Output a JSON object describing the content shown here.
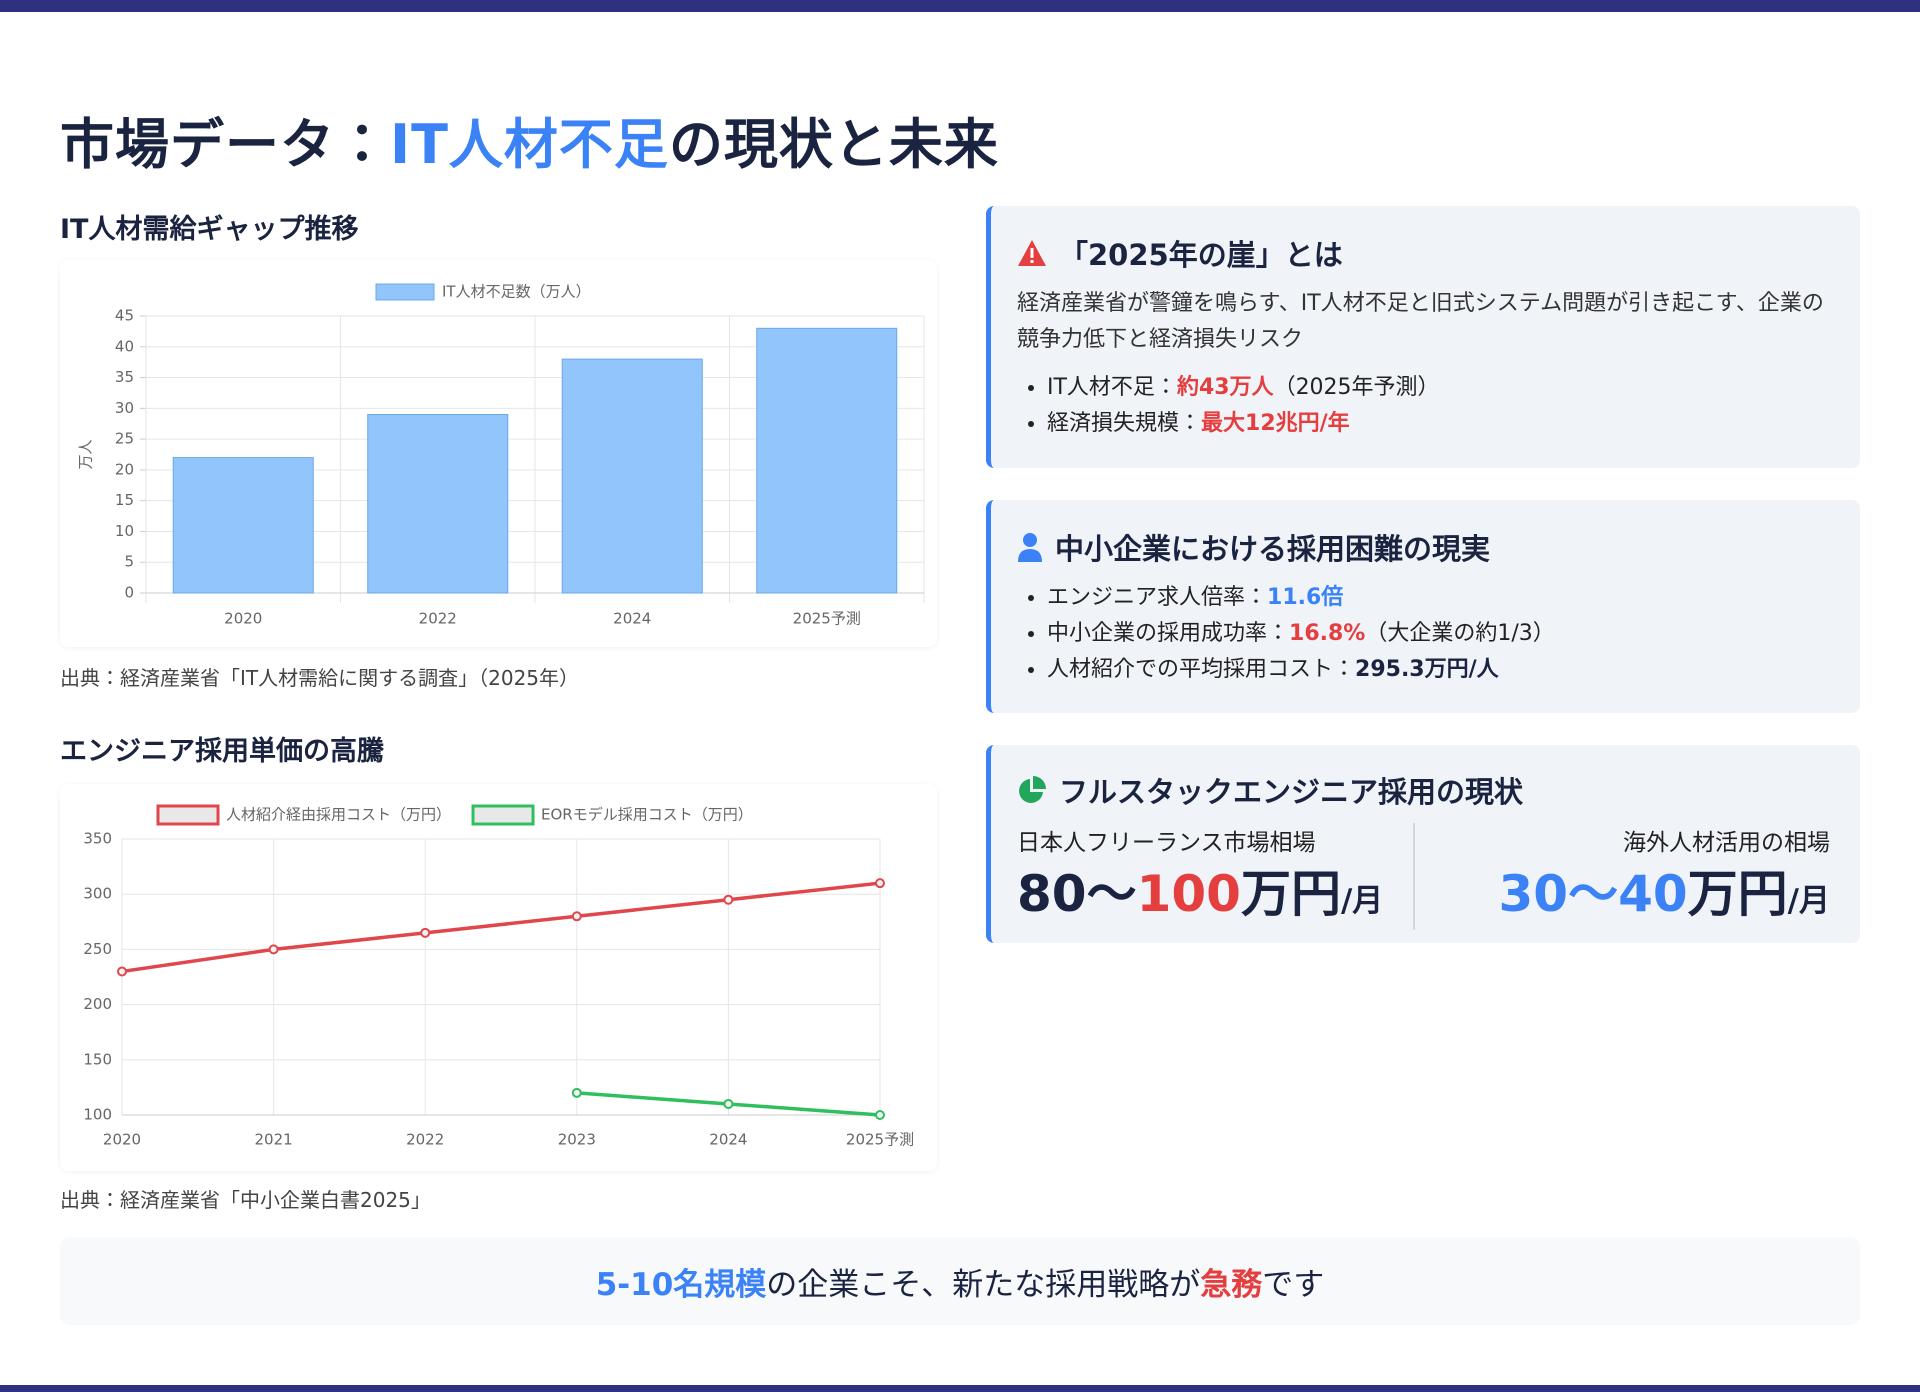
{
  "header": {
    "title": [
      {
        "text": "市場データ："
      },
      {
        "text": "IT人材不足",
        "color": "#3b82f6"
      },
      {
        "text": "の現状と未来"
      }
    ]
  },
  "chart_data": [
    {
      "type": "bar",
      "title": "IT人材需給ギャップ推移",
      "categories": [
        "2020",
        "2022",
        "2024",
        "2025予測"
      ],
      "series": [
        {
          "name": "IT人材不足数（万人）",
          "color": "#93c5fd",
          "values": [
            22,
            29,
            38,
            43
          ]
        }
      ],
      "y_label": "万人",
      "ylim": [
        0,
        45
      ],
      "yticks": [
        0,
        5,
        10,
        15,
        20,
        25,
        30,
        35,
        40,
        45
      ],
      "grid": true,
      "source": "出典：経済産業省「IT人材需給に関する調査」（2025年）"
    },
    {
      "type": "line",
      "title": "エンジニア採用単価の高騰",
      "categories": [
        "2020",
        "2021",
        "2022",
        "2023",
        "2024",
        "2025予測"
      ],
      "series": [
        {
          "name": "人材紹介経由採用コスト（万円）",
          "color": "#e0474c",
          "values": [
            230,
            250,
            265,
            280,
            295,
            310
          ]
        },
        {
          "name": "EORモデル採用コスト（万円）",
          "color": "#2fbf5f",
          "values": [
            null,
            null,
            null,
            120,
            110,
            100
          ]
        }
      ],
      "ylim": [
        100,
        350
      ],
      "yticks": [
        100,
        150,
        200,
        250,
        300,
        350
      ],
      "grid": true,
      "source": "出典：経済産業省「中小企業白書2025」"
    }
  ],
  "cards": [
    {
      "title": "「2025年の崖」とは",
      "description": "経済産業省が警鐘を鳴らす、IT人材不足と旧式システム問題が引き起こす、企業の競争力低下と経済損失リスク",
      "items": [
        [
          {
            "text": "IT人材不足："
          },
          {
            "text": "約43万人",
            "color": "#e53e3e"
          },
          {
            "text": "（2025年予測）"
          }
        ],
        [
          {
            "text": "経済損失規模："
          },
          {
            "text": "最大12兆円/年",
            "color": "#e53e3e"
          }
        ]
      ]
    },
    {
      "title": "中小企業における採用困難の現実",
      "items": [
        [
          {
            "text": "エンジニア求人倍率："
          },
          {
            "text": "11.6倍",
            "color": "#3b82f6"
          }
        ],
        [
          {
            "text": "中小企業の採用成功率："
          },
          {
            "text": "16.8%",
            "color": "#e53e3e"
          },
          {
            "text": "（大企業の約1/3）"
          }
        ],
        [
          {
            "text": "人材紹介での平均採用コスト："
          },
          {
            "text": "295.3万円/人",
            "color": "#1a2340"
          }
        ]
      ]
    },
    {
      "title": "フルスタックエンジニア採用の現状",
      "columns": [
        {
          "label": "日本人フリーランス市場相場",
          "value": [
            {
              "text": "80〜"
            },
            {
              "text": "100",
              "color": "#e53e3e"
            },
            {
              "text": "万円"
            }
          ],
          "unit": "/月"
        },
        {
          "label": "海外人材活用の相場",
          "value": [
            {
              "text": "30〜40",
              "color": "#3b82f6"
            },
            {
              "text": "万円"
            }
          ],
          "unit": "/月"
        }
      ]
    }
  ],
  "footer": {
    "message": [
      {
        "text": "5-10名規模",
        "color": "#3b82f6"
      },
      {
        "text": "の企業こそ、新たな採用戦略が"
      },
      {
        "text": "急務",
        "color": "#e53e3e"
      },
      {
        "text": "です"
      }
    ]
  }
}
